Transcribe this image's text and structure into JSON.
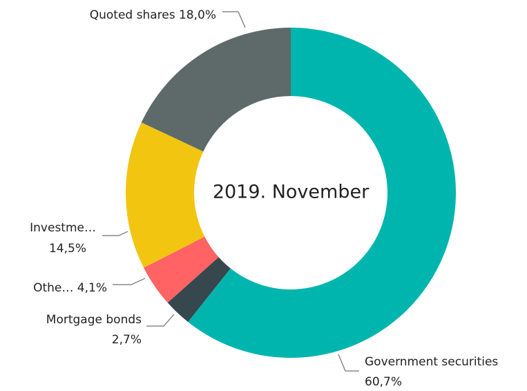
{
  "chart_data": {
    "type": "donut",
    "title": "2019. November",
    "categories": [
      "Government securities",
      "Mortgage bonds",
      "Othe…",
      "Investme…",
      "Quoted shares"
    ],
    "values": [
      60.7,
      2.7,
      4.1,
      14.5,
      18.0
    ],
    "value_labels": [
      "60,7%",
      "2,7%",
      "4,1%",
      "14,5%",
      "18,0%"
    ],
    "colors": [
      "#00b5ad",
      "#36474d",
      "#ff6363",
      "#f2c511",
      "#5e6a6a"
    ]
  }
}
